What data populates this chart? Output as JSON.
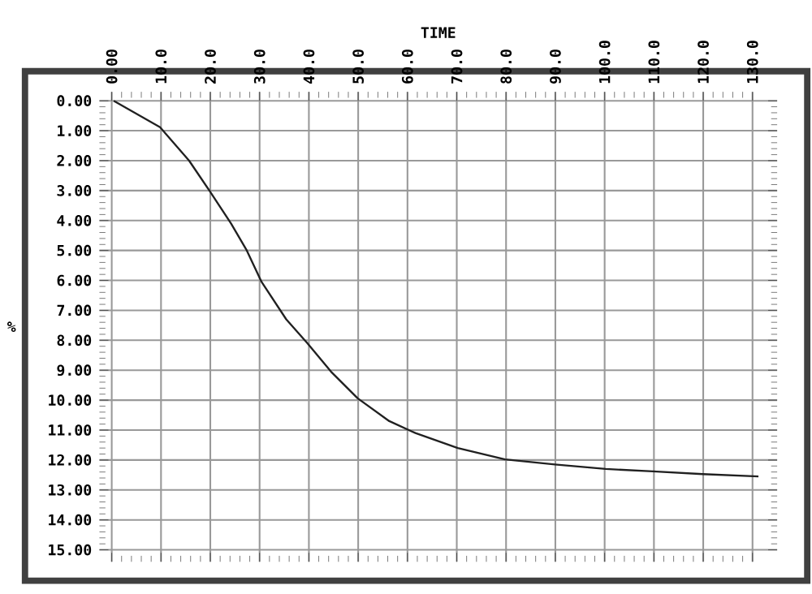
{
  "chart_data": {
    "type": "line",
    "xlabel": "TIME",
    "ylabel": "%",
    "x": [
      0.4,
      9.8,
      15.7,
      19.9,
      24.2,
      27.4,
      30.4,
      35.4,
      39.7,
      44.5,
      49.9,
      56.3,
      61.6,
      70.2,
      79.8,
      89.9,
      100.2,
      109.8,
      119.9,
      131.2
    ],
    "series": [
      {
        "color": "#202020",
        "values": [
          0,
          0.88,
          2.0,
          3.02,
          4.1,
          5.0,
          6.05,
          7.3,
          8.1,
          9.05,
          9.94,
          10.7,
          11.1,
          11.6,
          11.98,
          12.15,
          12.3,
          12.38,
          12.47,
          12.55
        ]
      }
    ],
    "xlim": [
      -2.5,
      135
    ],
    "ylim": [
      15.4,
      -0.3
    ],
    "xticks": [
      {
        "value": 0,
        "label": "0.00"
      },
      {
        "value": 10,
        "label": "10.0"
      },
      {
        "value": 20,
        "label": "20.0"
      },
      {
        "value": 30,
        "label": "30.0"
      },
      {
        "value": 40,
        "label": "40.0"
      },
      {
        "value": 50,
        "label": "50.0"
      },
      {
        "value": 60,
        "label": "60.0"
      },
      {
        "value": 70,
        "label": "70.0"
      },
      {
        "value": 80,
        "label": "80.0"
      },
      {
        "value": 90,
        "label": "90.0"
      },
      {
        "value": 100,
        "label": "100.0"
      },
      {
        "value": 110,
        "label": "110.0"
      },
      {
        "value": 120,
        "label": "120.0"
      },
      {
        "value": 130,
        "label": "130.0"
      }
    ],
    "yticks": [
      {
        "value": 0,
        "label": "0.00"
      },
      {
        "value": 1,
        "label": "1.00"
      },
      {
        "value": 2,
        "label": "2.00"
      },
      {
        "value": 3,
        "label": "3.00"
      },
      {
        "value": 4,
        "label": "4.00"
      },
      {
        "value": 5,
        "label": "5.00"
      },
      {
        "value": 6,
        "label": "6.00"
      },
      {
        "value": 7,
        "label": "7.00"
      },
      {
        "value": 8,
        "label": "8.00"
      },
      {
        "value": 9,
        "label": "9.00"
      },
      {
        "value": 10,
        "label": "10.00"
      },
      {
        "value": 11,
        "label": "11.00"
      },
      {
        "value": 12,
        "label": "12.00"
      },
      {
        "value": 13,
        "label": "13.00"
      },
      {
        "value": 14,
        "label": "14.00"
      },
      {
        "value": 15,
        "label": "15.00"
      }
    ],
    "grid": true
  }
}
